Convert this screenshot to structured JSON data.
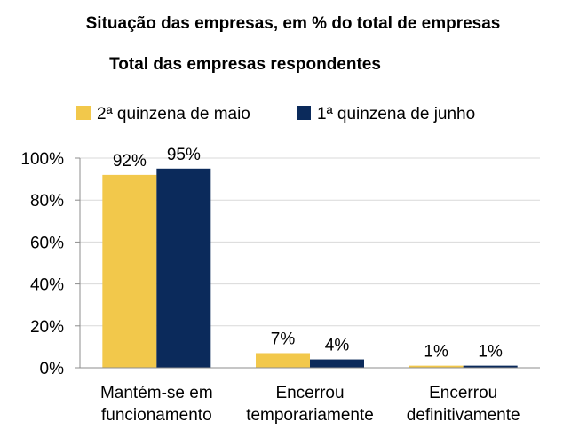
{
  "chart_data": {
    "type": "bar",
    "title": "Situação das empresas, em % do total de empresas",
    "subtitle": "Total das empresas respondentes",
    "categories": [
      [
        "Mantém-se em",
        "funcionamento"
      ],
      [
        "Encerrou",
        "temporariamente"
      ],
      [
        "Encerrou",
        "definitivamente"
      ]
    ],
    "series": [
      {
        "name": "2ª quinzena de maio",
        "color": "#F2C84B",
        "values": [
          92,
          7,
          1
        ],
        "labels": [
          "92%",
          "7%",
          "1%"
        ]
      },
      {
        "name": "1ª quinzena de junho",
        "color": "#0B2A5B",
        "values": [
          95,
          4,
          1
        ],
        "labels": [
          "95%",
          "4%",
          "1%"
        ]
      }
    ],
    "ylim": [
      0,
      100
    ],
    "yticks": [
      0,
      20,
      40,
      60,
      80,
      100
    ],
    "ytick_labels": [
      "0%",
      "20%",
      "40%",
      "60%",
      "80%",
      "100%"
    ],
    "grid": true,
    "legend_position": "top"
  }
}
